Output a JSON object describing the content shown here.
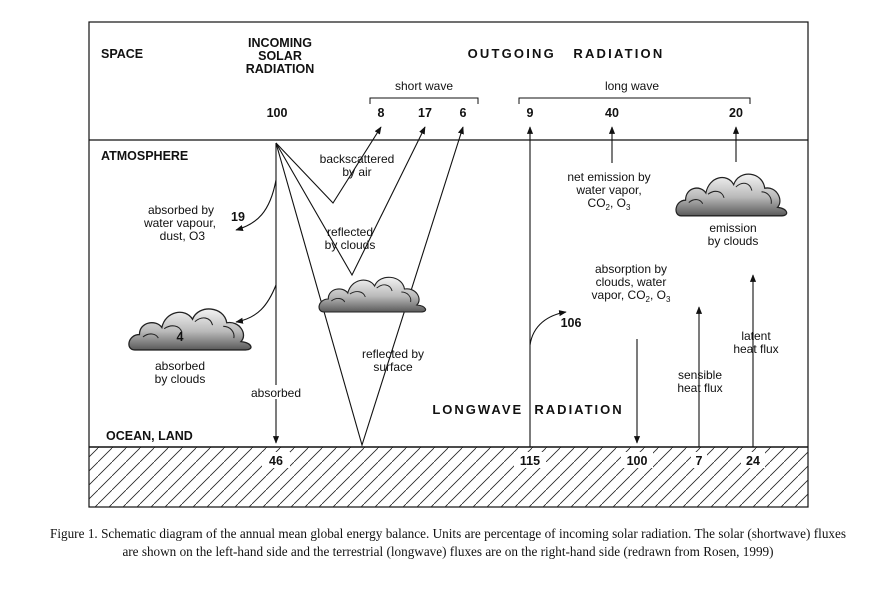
{
  "regions": {
    "space": "SPACE",
    "atmosphere": "ATMOSPHERE",
    "surface": "OCEAN, LAND"
  },
  "incoming": {
    "line1": "INCOMING",
    "line2": "SOLAR",
    "line3": "RADIATION",
    "value": "100"
  },
  "outgoing": {
    "title": "OUTGOING   RADIATION",
    "short_wave_label": "short wave",
    "long_wave_label": "long wave",
    "short_values": [
      "8",
      "17",
      "6"
    ],
    "long_values": [
      "9",
      "40",
      "20"
    ]
  },
  "shortwave": {
    "backscatter": [
      "backscattered",
      "by air"
    ],
    "absorbed_vapour": [
      "absorbed by",
      "water vapour,",
      "dust, O3"
    ],
    "absorbed_vapour_value": "19",
    "reflected_clouds": [
      "reflected",
      "by clouds"
    ],
    "cloud_absorbed_value": "4",
    "absorbed_clouds": [
      "absorbed",
      "by clouds"
    ],
    "reflected_surface": [
      "reflected by",
      "surface"
    ],
    "absorbed": "absorbed"
  },
  "longwave": {
    "net_emission": [
      "net emission by",
      "water vapor,",
      "CO2, O3"
    ],
    "emission_clouds": [
      "emission",
      "by clouds"
    ],
    "absorption": [
      "absorption by",
      "clouds, water",
      "vapor, CO2, O3"
    ],
    "value_106": "106",
    "latent": [
      "latent",
      "heat flux"
    ],
    "sensible": [
      "sensible",
      "heat flux"
    ],
    "title": "LONGWAVE  RADIATION"
  },
  "surface_values": [
    "46",
    "115",
    "100",
    "7",
    "24"
  ],
  "caption": "Figure 1. Schematic diagram of the annual mean global energy balance. Units are percentage of incoming solar radiation. The solar (shortwave) fluxes are shown on the left-hand side and the terrestrial (longwave) fluxes are on the right-hand side (redrawn from Rosen, 1999)"
}
